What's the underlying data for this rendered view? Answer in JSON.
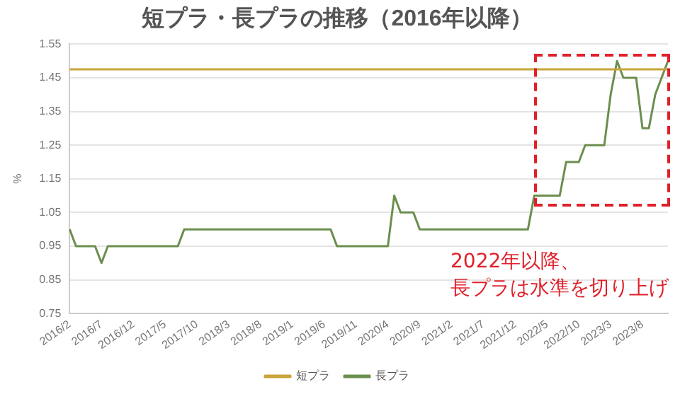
{
  "chart_data": {
    "type": "line",
    "title": "短プラ・長プラの推移（2016年以降）",
    "ylabel": "%",
    "categories": [
      "2016/2",
      null,
      null,
      null,
      null,
      "2016/7",
      null,
      null,
      null,
      null,
      "2016/12",
      null,
      null,
      null,
      null,
      "2017/5",
      null,
      null,
      null,
      null,
      "2017/10",
      null,
      null,
      null,
      null,
      "2018/3",
      null,
      null,
      null,
      null,
      "2018/8",
      null,
      null,
      null,
      null,
      "2019/1",
      null,
      null,
      null,
      null,
      "2019/6",
      null,
      null,
      null,
      null,
      "2019/11",
      null,
      null,
      null,
      null,
      "2020/4",
      null,
      null,
      null,
      null,
      "2020/9",
      null,
      null,
      null,
      null,
      "2021/2",
      null,
      null,
      null,
      null,
      "2021/7",
      null,
      null,
      null,
      null,
      "2021/12",
      null,
      null,
      null,
      null,
      "2022/5",
      null,
      null,
      null,
      null,
      "2022/10",
      null,
      null,
      null,
      null,
      "2023/3",
      null,
      null,
      null,
      null,
      "2023/8",
      null,
      null,
      null,
      null
    ],
    "series": [
      {
        "name": "短プラ",
        "color": "#c9a43a",
        "values": [
          1.475,
          1.475,
          1.475,
          1.475,
          1.475,
          1.475,
          1.475,
          1.475,
          1.475,
          1.475,
          1.475,
          1.475,
          1.475,
          1.475,
          1.475,
          1.475,
          1.475,
          1.475,
          1.475,
          1.475,
          1.475,
          1.475,
          1.475,
          1.475,
          1.475,
          1.475,
          1.475,
          1.475,
          1.475,
          1.475,
          1.475,
          1.475,
          1.475,
          1.475,
          1.475,
          1.475,
          1.475,
          1.475,
          1.475,
          1.475,
          1.475,
          1.475,
          1.475,
          1.475,
          1.475,
          1.475,
          1.475,
          1.475,
          1.475,
          1.475,
          1.475,
          1.475,
          1.475,
          1.475,
          1.475,
          1.475,
          1.475,
          1.475,
          1.475,
          1.475,
          1.475,
          1.475,
          1.475,
          1.475,
          1.475,
          1.475,
          1.475,
          1.475,
          1.475,
          1.475,
          1.475,
          1.475,
          1.475,
          1.475,
          1.475,
          1.475,
          1.475,
          1.475,
          1.475,
          1.475,
          1.475,
          1.475,
          1.475,
          1.475,
          1.475,
          1.475,
          1.475,
          1.475,
          1.475,
          1.475,
          1.475,
          1.475,
          1.475,
          1.475,
          1.475
        ]
      },
      {
        "name": "長プラ",
        "color": "#6b8e4e",
        "values": [
          1.0,
          0.95,
          0.95,
          0.95,
          0.95,
          0.9,
          0.95,
          0.95,
          0.95,
          0.95,
          0.95,
          0.95,
          0.95,
          0.95,
          0.95,
          0.95,
          0.95,
          0.95,
          1.0,
          1.0,
          1.0,
          1.0,
          1.0,
          1.0,
          1.0,
          1.0,
          1.0,
          1.0,
          1.0,
          1.0,
          1.0,
          1.0,
          1.0,
          1.0,
          1.0,
          1.0,
          1.0,
          1.0,
          1.0,
          1.0,
          1.0,
          1.0,
          0.95,
          0.95,
          0.95,
          0.95,
          0.95,
          0.95,
          0.95,
          0.95,
          0.95,
          1.1,
          1.05,
          1.05,
          1.05,
          1.0,
          1.0,
          1.0,
          1.0,
          1.0,
          1.0,
          1.0,
          1.0,
          1.0,
          1.0,
          1.0,
          1.0,
          1.0,
          1.0,
          1.0,
          1.0,
          1.0,
          1.0,
          1.1,
          1.1,
          1.1,
          1.1,
          1.1,
          1.2,
          1.2,
          1.2,
          1.25,
          1.25,
          1.25,
          1.25,
          1.4,
          1.5,
          1.45,
          1.45,
          1.45,
          1.3,
          1.3,
          1.4,
          1.45,
          1.5
        ]
      }
    ],
    "ylim": [
      0.75,
      1.55
    ],
    "yticks": [
      0.75,
      0.85,
      0.95,
      1.05,
      1.15,
      1.25,
      1.35,
      1.45,
      1.55
    ],
    "grid": "y",
    "legend": "bottom",
    "marker": "none",
    "line_style": "solid",
    "annotations": [
      "2022年以降、",
      "長プラは水準を切り上げ"
    ]
  }
}
